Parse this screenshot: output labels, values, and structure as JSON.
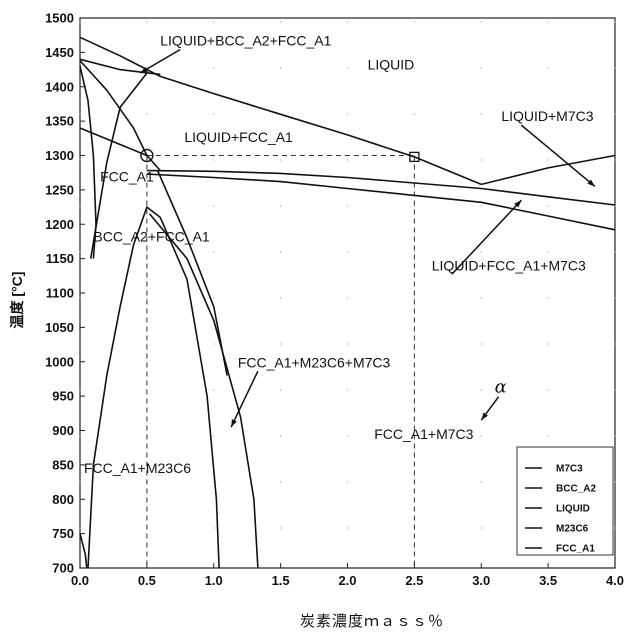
{
  "chart_data": {
    "type": "line",
    "title": "",
    "xlabel": "炭素濃度ｍａｓｓ％",
    "ylabel": "温度 [°C]",
    "xlim": [
      0.0,
      4.0
    ],
    "ylim": [
      700,
      1500
    ],
    "x_ticks": [
      "0.0",
      "0.5",
      "1.0",
      "1.5",
      "2.0",
      "2.5",
      "3.0",
      "3.5",
      "4.0"
    ],
    "y_ticks": [
      "700",
      "750",
      "800",
      "850",
      "900",
      "950",
      "1000",
      "1050",
      "1100",
      "1150",
      "1200",
      "1250",
      "1300",
      "1350",
      "1400",
      "1450",
      "1500"
    ],
    "legend": {
      "position": "bottom-right",
      "entries": [
        "M7C3",
        "BCC_A2",
        "LIQUID",
        "M23C6",
        "FCC_A1"
      ]
    },
    "series": [
      {
        "name": "LIQUID",
        "points": [
          [
            0.0,
            1472
          ],
          [
            0.3,
            1445
          ],
          [
            0.6,
            1415
          ],
          [
            1.0,
            1390
          ],
          [
            1.5,
            1360
          ],
          [
            2.0,
            1330
          ],
          [
            2.5,
            1298
          ],
          [
            3.0,
            1258
          ]
        ]
      },
      {
        "name": "LIQUID",
        "points": [
          [
            0.0,
            1438
          ],
          [
            0.2,
            1395
          ],
          [
            0.4,
            1340
          ],
          [
            0.5,
            1300
          ]
        ]
      },
      {
        "name": "LIQUID",
        "points": [
          [
            0.0,
            1440
          ],
          [
            0.3,
            1425
          ],
          [
            0.6,
            1418
          ]
        ]
      },
      {
        "name": "LIQUID",
        "points": [
          [
            3.0,
            1258
          ],
          [
            3.5,
            1282
          ],
          [
            4.0,
            1300
          ]
        ]
      },
      {
        "name": "LIQUID",
        "points": [
          [
            0.5,
            1278
          ],
          [
            1.0,
            1277
          ],
          [
            1.5,
            1274
          ],
          [
            2.0,
            1268
          ],
          [
            2.5,
            1260
          ],
          [
            3.0,
            1252
          ],
          [
            3.5,
            1240
          ],
          [
            4.0,
            1228
          ]
        ]
      },
      {
        "name": "FCC_A1",
        "points": [
          [
            0.5,
            1273
          ],
          [
            1.0,
            1268
          ],
          [
            1.5,
            1262
          ],
          [
            2.0,
            1252
          ],
          [
            2.5,
            1242
          ],
          [
            3.0,
            1232
          ],
          [
            3.5,
            1212
          ],
          [
            4.0,
            1192
          ]
        ]
      },
      {
        "name": "BCC_A2",
        "points": [
          [
            0.08,
            1150
          ],
          [
            0.2,
            1290
          ],
          [
            0.3,
            1370
          ],
          [
            0.5,
            1420
          ]
        ]
      },
      {
        "name": "BCC_A2",
        "points": [
          [
            0.0,
            1340
          ],
          [
            0.5,
            1300
          ],
          [
            0.6,
            1278
          ]
        ]
      },
      {
        "name": "FCC_A1",
        "points": [
          [
            0.06,
            700
          ],
          [
            0.1,
            850
          ],
          [
            0.2,
            980
          ],
          [
            0.3,
            1080
          ],
          [
            0.4,
            1170
          ],
          [
            0.5,
            1225
          ],
          [
            0.6,
            1210
          ],
          [
            0.8,
            1120
          ],
          [
            0.95,
            950
          ],
          [
            1.02,
            800
          ],
          [
            1.04,
            700
          ]
        ]
      },
      {
        "name": "M23C6",
        "points": [
          [
            0.52,
            1215
          ],
          [
            0.8,
            1150
          ],
          [
            1.0,
            1060
          ],
          [
            1.2,
            920
          ],
          [
            1.3,
            800
          ],
          [
            1.33,
            700
          ]
        ]
      },
      {
        "name": "M7C3",
        "points": [
          [
            0.58,
            1278
          ],
          [
            0.8,
            1180
          ],
          [
            1.0,
            1080
          ],
          [
            1.1,
            980
          ]
        ]
      },
      {
        "name": "FCC_A1",
        "points": [
          [
            0.0,
            1430
          ],
          [
            0.06,
            1380
          ],
          [
            0.1,
            1300
          ],
          [
            0.12,
            1200
          ],
          [
            0.1,
            1150
          ]
        ]
      },
      {
        "name": "BCC_A2",
        "points": [
          [
            0.0,
            750
          ],
          [
            0.04,
            720
          ],
          [
            0.05,
            700
          ]
        ]
      }
    ],
    "reference_lines": [
      {
        "points": [
          [
            0.5,
            1300
          ],
          [
            2.5,
            1300
          ]
        ],
        "style": "dashed"
      },
      {
        "points": [
          [
            0.5,
            1300
          ],
          [
            0.5,
            700
          ]
        ],
        "style": "dashed"
      },
      {
        "points": [
          [
            2.5,
            1300
          ],
          [
            2.5,
            700
          ]
        ],
        "style": "dashed"
      }
    ],
    "markers": [
      {
        "x": 0.5,
        "y": 1300,
        "shape": "circle"
      },
      {
        "x": 2.5,
        "y": 1298,
        "shape": "square"
      }
    ],
    "annotations": [
      {
        "text": "LIQUID+BCC_A2+FCC_A1",
        "x": 0.6,
        "y": 1460,
        "arrow_to": [
          0.45,
          1420
        ]
      },
      {
        "text": "LIQUID",
        "x": 2.15,
        "y": 1425
      },
      {
        "text": "LIQUID+M7C3",
        "x": 3.15,
        "y": 1350,
        "arrow_to": [
          3.85,
          1255
        ]
      },
      {
        "text": "LIQUID+FCC_A1",
        "x": 0.78,
        "y": 1320
      },
      {
        "text": "FCC_A1",
        "x": 0.15,
        "y": 1262
      },
      {
        "text": "BCC_A2+FCC_A1",
        "x": 0.1,
        "y": 1175
      },
      {
        "text": "LIQUID+FCC_A1+M7C3",
        "x": 2.63,
        "y": 1133,
        "arrow_to": [
          3.3,
          1235
        ]
      },
      {
        "text": "FCC_A1+M23C6+M7C3",
        "x": 1.18,
        "y": 992,
        "arrow_to": [
          1.13,
          905
        ]
      },
      {
        "text": "α",
        "x": 3.1,
        "y": 955,
        "arrow_to": [
          3.0,
          915
        ]
      },
      {
        "text": "FCC_A1+M7C3",
        "x": 2.2,
        "y": 888
      },
      {
        "text": "FCC_A1+M23C6",
        "x": 0.03,
        "y": 838
      }
    ]
  }
}
